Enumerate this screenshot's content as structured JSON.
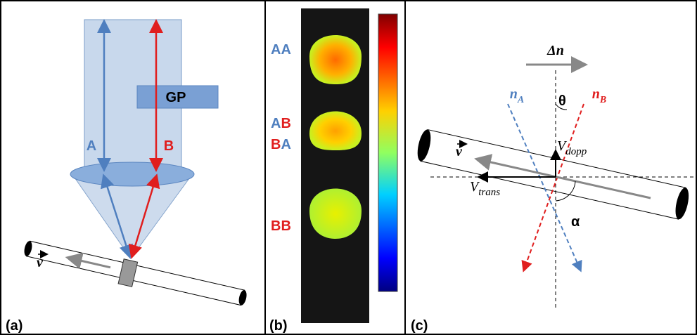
{
  "panel_a": {
    "label": "(a)",
    "gp": "GP",
    "beam_a": "A",
    "beam_b": "B",
    "velocity": "v"
  },
  "panel_b": {
    "label": "(b)",
    "rows": [
      [
        "A",
        "A"
      ],
      [
        "A",
        "B"
      ],
      [
        "B",
        "A"
      ],
      [
        "B",
        "B"
      ]
    ]
  },
  "panel_c": {
    "label": "(c)",
    "delta_n": "Δn",
    "n_a": {
      "symbol": "n",
      "subscript": "A"
    },
    "n_b": {
      "symbol": "n",
      "subscript": "B"
    },
    "theta": "θ",
    "alpha": "α",
    "velocity": "v",
    "v_dopp": {
      "symbol": "V",
      "subscript": "dopp"
    },
    "v_trans": {
      "symbol": "V",
      "subscript": "trans"
    }
  }
}
